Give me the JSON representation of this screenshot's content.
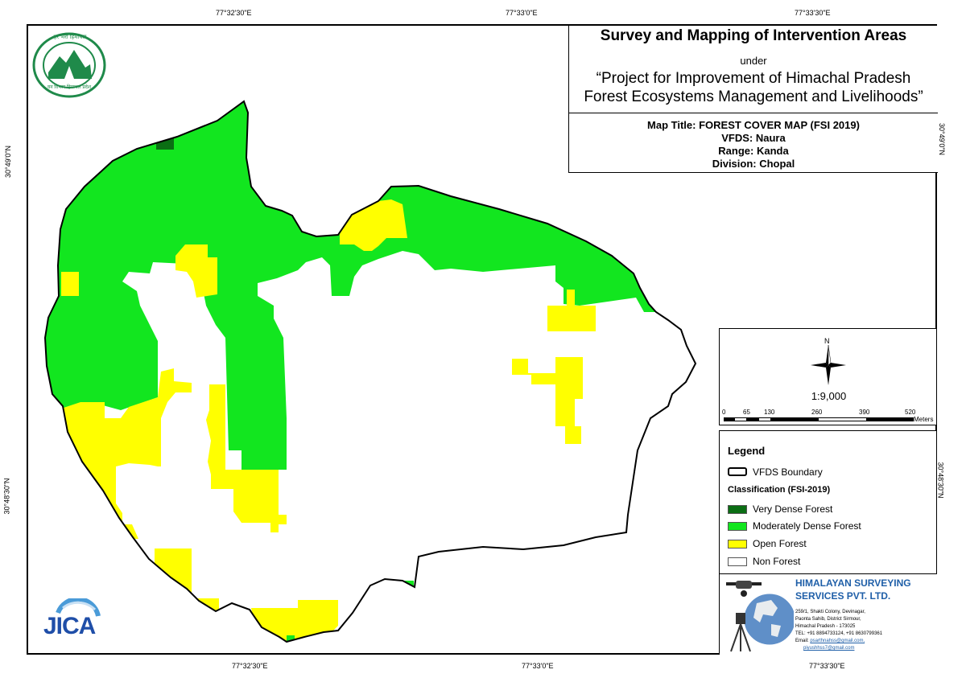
{
  "header": {
    "title": "Survey and Mapping of Intervention Areas",
    "under": "under",
    "project_line1": "“Project for Improvement of Himachal Pradesh",
    "project_line2": "Forest Ecosystems Management and Livelihoods”",
    "map_title": "Map Title: FOREST COVER MAP (FSI 2019)",
    "vfds": "VFDS: Naura",
    "range": "Range: Kanda",
    "division": "Division: Chopal"
  },
  "graticule": {
    "top": [
      "77°32'30\"E",
      "77°33'0\"E",
      "77°33'30\"E"
    ],
    "bottom": [
      "77°32'30\"E",
      "77°33'0\"E",
      "77°33'30\"E"
    ],
    "left": [
      "30°49'0\"N",
      "30°48'30\"N"
    ],
    "right": [
      "30°49'0\"N",
      "30°48'30\"N"
    ]
  },
  "north_arrow": {
    "label": "N"
  },
  "scale": {
    "ratio": "1:9,000",
    "ticks": [
      "0",
      "65",
      "130",
      "260",
      "390",
      "520"
    ],
    "unit": "Meters"
  },
  "legend": {
    "heading": "Legend",
    "boundary": "VFDS Boundary",
    "classification": "Classification (FSI-2019)",
    "classes": [
      {
        "label": "Very Dense Forest",
        "color": "#0b6e14"
      },
      {
        "label": "Moderately Dense Forest",
        "color": "#12e61f"
      },
      {
        "label": "Open Forest",
        "color": "#ffff00"
      },
      {
        "label": "Non Forest",
        "color": "#ffffff"
      }
    ]
  },
  "company": {
    "name_line1": "HIMALAYAN SURVEYING",
    "name_line2": "SERVICES PVT. LTD.",
    "address1": "259/1, Shakti Colony, Devinagar,",
    "address2": "Paonta Sahib, District Sirmour,",
    "address3": "Himachal Pradesh - 173025",
    "tel": "TEL: +91 8894733124, +91 8630799361",
    "email_label": "Email:",
    "email1": "psarthnahss@gmail.com,",
    "email2": "piyushhss7@gmail.com",
    "brand_color": "#1f5fa8"
  },
  "logos": {
    "hp_forest_top": "हर भरा हिमाचल",
    "hp_forest_bottom": "वन विभाग हिमाचल प्रदेश",
    "jica": "JICA"
  }
}
